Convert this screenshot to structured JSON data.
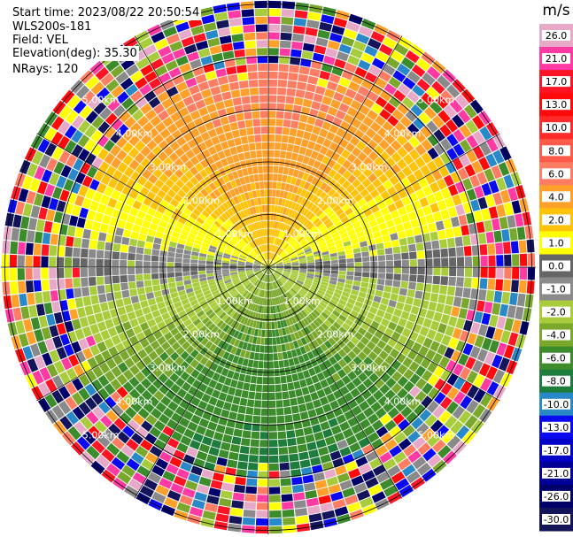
{
  "info": {
    "start_time": "Start time: 2023/08/22 20:50:54",
    "instrument": "WLS200s-181",
    "field": "Field: VEL",
    "elevation": "Elevation(deg): 35.30",
    "nrays": "NRays: 120"
  },
  "chart_data": {
    "type": "heatmap",
    "projection": "polar (PPI scan)",
    "title": "",
    "units": "m/s",
    "n_rays": 120,
    "range_rings_km": [
      1.0,
      2.0,
      3.0,
      4.0,
      5.0
    ],
    "range_labels": [
      "1.00km",
      "2.00km",
      "3.00km",
      "4.00km",
      "5.00km"
    ],
    "spokes_deg": [
      0,
      30,
      60,
      90,
      120,
      150,
      180,
      210,
      240,
      270,
      300,
      330
    ],
    "colorbar": {
      "label": "m/s",
      "vmin": -30.0,
      "vmax": 30.0,
      "ticks": [
        "26.0",
        "21.0",
        "17.0",
        "13.0",
        "10.0",
        "8.0",
        "6.0",
        "4.0",
        "2.0",
        "1.0",
        "0.0",
        "-1.0",
        "-2.0",
        "-4.0",
        "-6.0",
        "-8.0",
        "-10.0",
        "-13.0",
        "-17.0",
        "-21.0",
        "-26.0",
        "-30.0"
      ],
      "bins": [
        {
          "color": "#e8a8c8"
        },
        {
          "color": "#ff3aa3"
        },
        {
          "color": "#ff1426"
        },
        {
          "color": "#ff0a0a"
        },
        {
          "color": "#ff2a2a"
        },
        {
          "color": "#ff5a4a"
        },
        {
          "color": "#ff7d62"
        },
        {
          "color": "#ffa02a"
        },
        {
          "color": "#ffc20a"
        },
        {
          "color": "#ffff00"
        },
        {
          "color": "#666666"
        },
        {
          "color": "#8a8a8a"
        },
        {
          "color": "#a8cc3c"
        },
        {
          "color": "#7aa82c"
        },
        {
          "color": "#3c8c2c"
        },
        {
          "color": "#1e7c3c"
        },
        {
          "color": "#2888c8"
        },
        {
          "color": "#0a0af0"
        },
        {
          "color": "#0000c8"
        },
        {
          "color": "#000096"
        },
        {
          "color": "#00006a"
        },
        {
          "color": "#14145a"
        }
      ]
    },
    "field_summary": {
      "north_half_inner": "positive velocities, about 2 to 8 m/s (yellow/orange)",
      "south_half_inner": "negative velocities, about -2 to -8 m/s (green)",
      "east_west_band": "near zero (gray)",
      "outer_ring": "noisy mixed values over the full range"
    }
  }
}
